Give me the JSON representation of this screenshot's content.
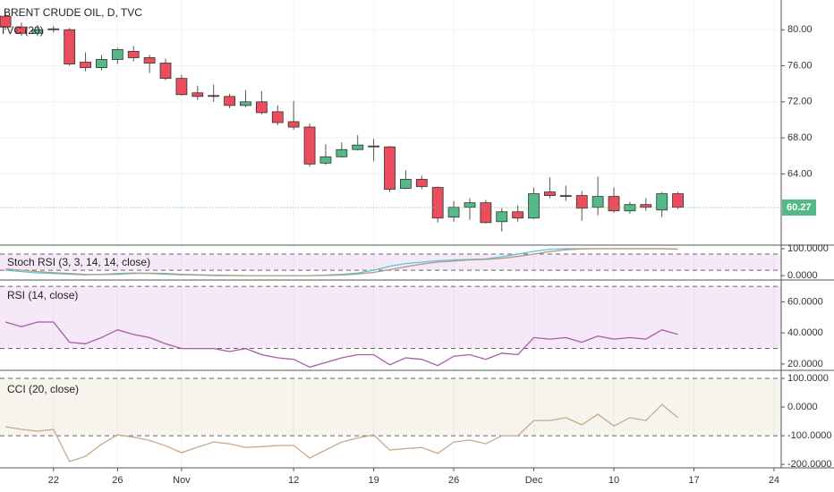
{
  "chart_data": [
    {
      "type": "candlestick",
      "title": "BRENT CRUDE OIL, D, TVC",
      "subtitle": "TVC (20)",
      "open": [
        81.5,
        80.3,
        79.6,
        80.1,
        80.0,
        76.4,
        75.8,
        76.7,
        77.6,
        76.9,
        76.3,
        74.6,
        73.0,
        72.7,
        72.6,
        71.6,
        72.0,
        70.9,
        69.8,
        69.2,
        65.2,
        65.9,
        66.7,
        67.1,
        67.0,
        62.4,
        63.4,
        62.5,
        59.2,
        60.3,
        60.8,
        58.7,
        59.8,
        59.1,
        62.0,
        61.6,
        61.6,
        60.3,
        61.5,
        59.9,
        60.6,
        60.0,
        61.8
      ],
      "high": [
        82.0,
        80.8,
        80.5,
        80.4,
        80.2,
        77.5,
        77.2,
        78.0,
        78.2,
        77.2,
        76.8,
        75.0,
        73.8,
        73.9,
        72.9,
        73.3,
        73.2,
        71.6,
        72.1,
        69.6,
        67.3,
        67.5,
        68.3,
        67.9,
        67.1,
        64.4,
        63.8,
        62.6,
        61.0,
        61.3,
        61.1,
        60.2,
        60.5,
        62.5,
        63.6,
        62.7,
        62.1,
        63.7,
        62.5,
        60.9,
        61.3,
        62.0,
        62.0
      ],
      "low": [
        80.0,
        79.3,
        79.3,
        79.7,
        76.0,
        75.4,
        75.5,
        76.2,
        76.5,
        75.2,
        74.4,
        72.7,
        72.2,
        72.0,
        71.3,
        71.4,
        70.6,
        69.4,
        68.9,
        64.8,
        65.0,
        65.8,
        66.6,
        65.4,
        62.0,
        62.3,
        62.3,
        58.6,
        58.7,
        58.9,
        58.5,
        57.6,
        58.7,
        59.0,
        61.3,
        61.0,
        58.8,
        59.4,
        59.7,
        59.6,
        59.9,
        59.2,
        60.1
      ],
      "close": [
        80.3,
        79.6,
        80.0,
        80.0,
        76.2,
        75.8,
        76.7,
        77.8,
        76.9,
        76.3,
        74.6,
        72.8,
        72.6,
        72.6,
        71.6,
        72.0,
        70.8,
        69.7,
        69.2,
        65.1,
        65.9,
        66.7,
        67.2,
        67.0,
        62.3,
        63.4,
        62.6,
        59.1,
        60.3,
        60.8,
        58.6,
        59.8,
        59.1,
        61.8,
        61.6,
        61.5,
        60.2,
        61.5,
        59.9,
        60.6,
        60.3,
        61.8,
        60.3
      ],
      "up_color": "#53b987",
      "down_color": "#eb4d5c",
      "last_price": 60.27,
      "last_price_color": "#53b987",
      "ylim": [
        56.2,
        83.3
      ],
      "yticks": [
        {
          "value": 64,
          "label": "64.00"
        },
        {
          "value": 68,
          "label": "68.00"
        },
        {
          "value": 72,
          "label": "72.00"
        },
        {
          "value": 76,
          "label": "76.00"
        },
        {
          "value": 80,
          "label": "80.00"
        }
      ],
      "xlim": [
        -0.34,
        48.45
      ],
      "xticks": [
        {
          "value": 3,
          "label": "22"
        },
        {
          "value": 7,
          "label": "26"
        },
        {
          "value": 11,
          "label": "Nov"
        },
        {
          "value": 18,
          "label": "12"
        },
        {
          "value": 23,
          "label": "19"
        },
        {
          "value": 28,
          "label": "26"
        },
        {
          "value": 33,
          "label": "Dec"
        },
        {
          "value": 38,
          "label": "10"
        },
        {
          "value": 43,
          "label": "17"
        },
        {
          "value": 48,
          "label": "24"
        }
      ],
      "grid": true
    },
    {
      "type": "line",
      "title": "Stoch RSI (3, 3, 14, 14, close)",
      "series": [
        {
          "color": "#58c5d8",
          "values": [
            20,
            15,
            10,
            8,
            5,
            3,
            5,
            8,
            10,
            8,
            5,
            3,
            2,
            0,
            0,
            0,
            0,
            0,
            0,
            0,
            2,
            5,
            10,
            20,
            35,
            45,
            50,
            55,
            58,
            60,
            62,
            70,
            80,
            90,
            98,
            100,
            100,
            100,
            100,
            100,
            100,
            100,
            98
          ]
        },
        {
          "color": "#b89a7e",
          "values": [
            25,
            20,
            15,
            11,
            8,
            5,
            4,
            5,
            8,
            9,
            8,
            5,
            3,
            2,
            1,
            0,
            0,
            0,
            0,
            0,
            1,
            2,
            6,
            12,
            22,
            33,
            43,
            50,
            54,
            58,
            60,
            64,
            71,
            80,
            89,
            96,
            99,
            100,
            100,
            100,
            100,
            100,
            99
          ]
        }
      ],
      "band": [
        20,
        80
      ],
      "band_color": "#9c27b0",
      "ylim": [
        -13,
        110
      ],
      "yticks": [
        {
          "value": 0,
          "label": "0.0000"
        },
        {
          "value": 100,
          "label": "100.0000"
        }
      ]
    },
    {
      "type": "line",
      "title": "RSI (14, close)",
      "series": [
        {
          "color": "#a85aa8",
          "values": [
            47,
            44,
            47,
            47,
            34,
            33,
            37,
            42,
            39,
            37,
            33,
            30,
            30,
            30,
            28,
            30,
            26,
            24,
            23,
            18,
            21,
            24,
            26,
            26,
            19.5,
            24,
            23,
            19,
            25,
            26,
            23,
            27,
            26,
            37,
            36,
            37,
            34,
            38,
            36,
            37,
            36,
            42,
            39
          ]
        }
      ],
      "band": [
        30,
        70
      ],
      "band_color": "#9c27b0",
      "ylim": [
        16.5,
        73.5
      ],
      "yticks": [
        {
          "value": 20,
          "label": "20.0000"
        },
        {
          "value": 40,
          "label": "40.0000"
        },
        {
          "value": 60,
          "label": "60.0000"
        }
      ]
    },
    {
      "type": "line",
      "title": "CCI (20, close)",
      "series": [
        {
          "color": "#c8aa8a",
          "values": [
            -69,
            -78,
            -84,
            -78,
            -190,
            -172,
            -130,
            -97,
            -105,
            -116,
            -135,
            -159,
            -140,
            -122,
            -128,
            -141,
            -138,
            -134,
            -134,
            -178,
            -150,
            -122,
            -108,
            -97,
            -150,
            -145,
            -141,
            -162,
            -122,
            -115,
            -128,
            -100,
            -100,
            -47,
            -47,
            -37,
            -62,
            -25,
            -66,
            -37,
            -47,
            9,
            -37
          ]
        }
      ],
      "band": [
        -100,
        100
      ],
      "band_color": "#b08850",
      "ylim": [
        -209,
        125
      ],
      "yticks": [
        {
          "value": -200,
          "label": "-200.0000"
        },
        {
          "value": -100,
          "label": "-100.0000"
        },
        {
          "value": 0,
          "label": "0.0000"
        },
        {
          "value": 100,
          "label": "100.0000"
        }
      ]
    }
  ]
}
